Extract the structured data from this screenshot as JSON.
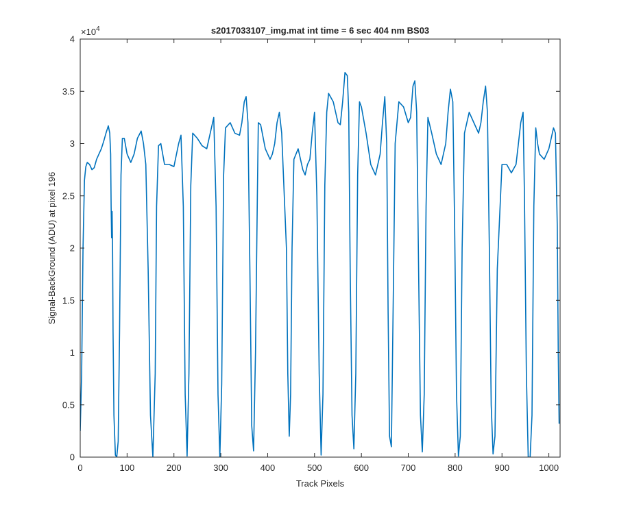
{
  "chart_data": {
    "type": "line",
    "title": "s2017033107_img.mat int time = 6 sec  404 nm BS03",
    "xlabel": "Track Pixels",
    "ylabel": "Signal-BackGround (ADU) at pixel 196",
    "xlim": [
      0,
      1024
    ],
    "ylim": [
      0,
      40000
    ],
    "y_exponent_label": "×10",
    "y_exponent_power": "4",
    "x_ticks": [
      0,
      100,
      200,
      300,
      400,
      500,
      600,
      700,
      800,
      900,
      1000
    ],
    "x_tick_labels": [
      "0",
      "100",
      "200",
      "300",
      "400",
      "500",
      "600",
      "700",
      "800",
      "900",
      "1000"
    ],
    "y_ticks": [
      0,
      5000,
      10000,
      15000,
      20000,
      25000,
      30000,
      35000,
      40000
    ],
    "y_tick_labels": [
      "0",
      "0.5",
      "1",
      "1.5",
      "2",
      "2.5",
      "3",
      "3.5",
      "4"
    ],
    "grid": false,
    "line_color": "#0072bd",
    "series": [
      {
        "x": [
          0,
          3,
          6,
          9,
          12,
          15,
          20,
          25,
          30,
          35,
          40,
          45,
          50,
          55,
          60,
          63,
          65,
          66,
          67,
          68,
          69,
          70,
          72,
          75,
          78,
          81,
          84,
          87,
          90,
          94,
          100,
          108,
          115,
          122,
          130,
          135,
          140,
          145,
          150,
          155,
          160,
          163,
          167,
          172,
          180,
          190,
          200,
          210,
          215,
          220,
          224,
          228,
          232,
          236,
          240,
          250,
          260,
          270,
          280,
          285,
          290,
          294,
          298,
          302,
          306,
          310,
          320,
          330,
          340,
          345,
          350,
          354,
          358,
          362,
          366,
          370,
          374,
          378,
          380,
          385,
          395,
          405,
          410,
          415,
          420,
          425,
          430,
          440,
          443,
          446,
          449,
          452,
          456,
          465,
          475,
          480,
          485,
          490,
          495,
          500,
          505,
          510,
          514,
          518,
          522,
          526,
          530,
          540,
          550,
          555,
          560,
          565,
          570,
          573,
          576,
          580,
          584,
          588,
          592,
          596,
          600,
          610,
          620,
          630,
          640,
          645,
          650,
          654,
          657,
          660,
          664,
          668,
          672,
          680,
          690,
          700,
          705,
          710,
          714,
          718,
          722,
          726,
          730,
          734,
          738,
          742,
          750,
          760,
          770,
          780,
          785,
          790,
          795,
          799,
          803,
          807,
          811,
          815,
          820,
          830,
          840,
          850,
          855,
          860,
          865,
          869,
          873,
          877,
          881,
          885,
          890,
          900,
          910,
          920,
          930,
          935,
          940,
          945,
          948,
          952,
          956,
          960,
          964,
          968,
          972,
          976,
          980,
          990,
          1000,
          1005,
          1010,
          1014,
          1018,
          1020,
          1022
        ],
        "y": [
          2500,
          8000,
          20000,
          26500,
          27800,
          28200,
          28000,
          27500,
          27700,
          28500,
          29000,
          29500,
          30200,
          31000,
          31700,
          31000,
          29000,
          24000,
          21000,
          23500,
          20000,
          12000,
          4000,
          200,
          0,
          1500,
          12000,
          27000,
          30500,
          30500,
          29000,
          28200,
          29000,
          30500,
          31200,
          30000,
          28000,
          18000,
          4000,
          0,
          8000,
          24000,
          29800,
          30000,
          28000,
          28000,
          27800,
          30000,
          30800,
          24000,
          6000,
          100,
          8000,
          26000,
          31000,
          30500,
          29800,
          29500,
          31500,
          32500,
          24000,
          6000,
          0,
          7000,
          27000,
          31500,
          32000,
          31000,
          30800,
          32000,
          34000,
          34500,
          32000,
          18000,
          3000,
          600,
          10000,
          25000,
          32000,
          31800,
          29500,
          28500,
          29000,
          30000,
          32000,
          33000,
          31000,
          20000,
          8000,
          2000,
          6000,
          20000,
          28500,
          29500,
          27500,
          27000,
          28000,
          28500,
          31000,
          33000,
          25000,
          8000,
          200,
          6000,
          26000,
          33000,
          34800,
          34000,
          32000,
          31800,
          34000,
          36800,
          36500,
          33000,
          18000,
          4000,
          800,
          8000,
          27000,
          34000,
          33500,
          31000,
          28000,
          27000,
          29000,
          32000,
          34500,
          30000,
          14000,
          2000,
          1000,
          15000,
          30000,
          34000,
          33500,
          32000,
          32500,
          35500,
          36000,
          33000,
          18000,
          4000,
          500,
          6000,
          24000,
          32500,
          31000,
          29000,
          28000,
          30000,
          33000,
          35200,
          34000,
          22000,
          6000,
          100,
          2000,
          20000,
          31000,
          33000,
          32000,
          31000,
          32000,
          34000,
          35500,
          33000,
          20000,
          5000,
          300,
          2000,
          18000,
          28000,
          28000,
          27200,
          28000,
          30000,
          32000,
          33000,
          25000,
          8000,
          0,
          0,
          4000,
          24000,
          31500,
          30000,
          29000,
          28500,
          29500,
          30500,
          31500,
          31000,
          22000,
          10000,
          3200
        ]
      }
    ]
  }
}
